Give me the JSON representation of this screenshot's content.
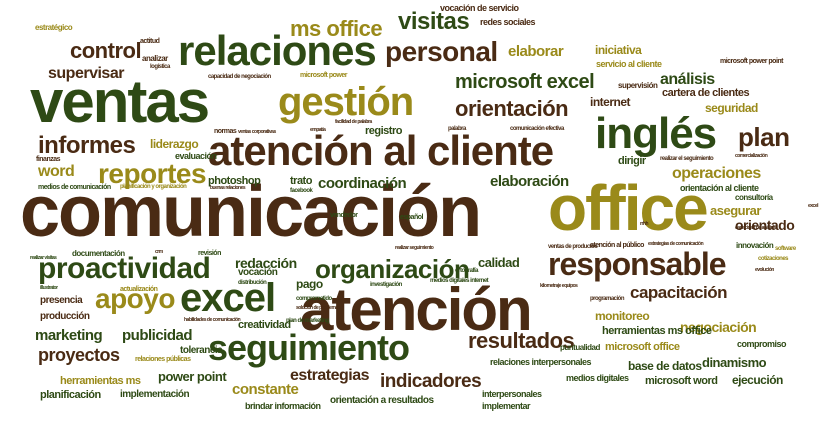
{
  "word_cloud": {
    "words": [
      {
        "text": "comunicación",
        "color": "#4a2b14"
      },
      {
        "text": "atención",
        "color": "#4a2b14"
      },
      {
        "text": "ventas",
        "color": "#2e4a15"
      },
      {
        "text": "office",
        "color": "#9a8a1a"
      },
      {
        "text": "inglés",
        "color": "#2e4a15"
      },
      {
        "text": "atención al cliente",
        "color": "#4a2b14"
      },
      {
        "text": "relaciones",
        "color": "#2e4a15"
      },
      {
        "text": "gestión",
        "color": "#9a8a1a"
      },
      {
        "text": "excel",
        "color": "#2e4a15"
      },
      {
        "text": "seguimiento",
        "color": "#2e4a15"
      },
      {
        "text": "responsable",
        "color": "#4a2b14"
      },
      {
        "text": "proactividad",
        "color": "#2e4a15"
      },
      {
        "text": "personal",
        "color": "#4a2b14"
      },
      {
        "text": "organización",
        "color": "#2e4a15"
      },
      {
        "text": "reportes",
        "color": "#9a8a1a"
      },
      {
        "text": "apoyo",
        "color": "#9a8a1a"
      },
      {
        "text": "ms office",
        "color": "#9a8a1a"
      },
      {
        "text": "informes",
        "color": "#4a2b14"
      },
      {
        "text": "control",
        "color": "#4a2b14"
      },
      {
        "text": "plan",
        "color": "#4a2b14"
      },
      {
        "text": "visitas",
        "color": "#2e4a15"
      },
      {
        "text": "resultados",
        "color": "#4a2b14"
      },
      {
        "text": "orientación",
        "color": "#4a2b14"
      },
      {
        "text": "microsoft excel",
        "color": "#2e4a15"
      },
      {
        "text": "supervisar",
        "color": "#4a2b14"
      },
      {
        "text": "indicadores",
        "color": "#4a2b14"
      },
      {
        "text": "estrategias",
        "color": "#4a2b14"
      },
      {
        "text": "proyectos",
        "color": "#4a2b14"
      },
      {
        "text": "capacitación",
        "color": "#4a2b14"
      },
      {
        "text": "operaciones",
        "color": "#9a8a1a"
      },
      {
        "text": "elaborar",
        "color": "#9a8a1a"
      },
      {
        "text": "análisis",
        "color": "#2e4a15"
      },
      {
        "text": "elaboración",
        "color": "#2e4a15"
      },
      {
        "text": "coordinación",
        "color": "#2e4a15"
      },
      {
        "text": "marketing",
        "color": "#2e4a15"
      },
      {
        "text": "publicidad",
        "color": "#2e4a15"
      },
      {
        "text": "word",
        "color": "#9a8a1a"
      },
      {
        "text": "redacción",
        "color": "#2e4a15"
      },
      {
        "text": "orientado",
        "color": "#4a2b14"
      },
      {
        "text": "asegurar",
        "color": "#9a8a1a"
      },
      {
        "text": "negociación",
        "color": "#9a8a1a"
      },
      {
        "text": "constante",
        "color": "#9a8a1a"
      },
      {
        "text": "power point",
        "color": "#2e4a15"
      },
      {
        "text": "dinamismo",
        "color": "#2e4a15"
      },
      {
        "text": "calidad",
        "color": "#2e4a15"
      },
      {
        "text": "liderazgo",
        "color": "#9a8a1a"
      },
      {
        "text": "iniciativa",
        "color": "#9a8a1a"
      },
      {
        "text": "cartera de clientes",
        "color": "#4a2b14"
      },
      {
        "text": "seguridad",
        "color": "#9a8a1a"
      },
      {
        "text": "internet",
        "color": "#4a2b14"
      },
      {
        "text": "dirigir",
        "color": "#2e4a15"
      },
      {
        "text": "monitoreo",
        "color": "#9a8a1a"
      },
      {
        "text": "herramientas ms office",
        "color": "#2e4a15"
      },
      {
        "text": "microsoft office",
        "color": "#9a8a1a"
      },
      {
        "text": "base de datos",
        "color": "#2e4a15"
      },
      {
        "text": "microsoft word",
        "color": "#2e4a15"
      },
      {
        "text": "ejecución",
        "color": "#2e4a15"
      },
      {
        "text": "compromiso",
        "color": "#2e4a15"
      },
      {
        "text": "pago",
        "color": "#2e4a15"
      },
      {
        "text": "trato",
        "color": "#2e4a15"
      },
      {
        "text": "photoshop",
        "color": "#2e4a15"
      },
      {
        "text": "creatividad",
        "color": "#2e4a15"
      },
      {
        "text": "tolerancia",
        "color": "#2e4a15"
      },
      {
        "text": "producción",
        "color": "#4a2b14"
      },
      {
        "text": "presencia",
        "color": "#4a2b14"
      },
      {
        "text": "planificación",
        "color": "#2e4a15"
      },
      {
        "text": "implementación",
        "color": "#2e4a15"
      },
      {
        "text": "herramientas ms",
        "color": "#9a8a1a"
      },
      {
        "text": "brindar información",
        "color": "#2e4a15"
      },
      {
        "text": "orientación a resultados",
        "color": "#2e4a15"
      },
      {
        "text": "relaciones interpersonales",
        "color": "#2e4a15"
      },
      {
        "text": "interpersonales",
        "color": "#2e4a15"
      },
      {
        "text": "implementar",
        "color": "#2e4a15"
      },
      {
        "text": "medios digitales",
        "color": "#2e4a15"
      },
      {
        "text": "puntualidad",
        "color": "#2e4a15"
      },
      {
        "text": "registro",
        "color": "#2e4a15"
      },
      {
        "text": "vocación",
        "color": "#2e4a15"
      },
      {
        "text": "evaluación",
        "color": "#2e4a15"
      },
      {
        "text": "redes sociales",
        "color": "#4a2b14"
      },
      {
        "text": "vocación de servicio",
        "color": "#4a2b14"
      },
      {
        "text": "servicio al cliente",
        "color": "#9a8a1a"
      },
      {
        "text": "supervisión",
        "color": "#4a2b14"
      },
      {
        "text": "microsoft power point",
        "color": "#4a2b14"
      },
      {
        "text": "orientación al cliente",
        "color": "#2e4a15"
      },
      {
        "text": "innovación",
        "color": "#2e4a15"
      },
      {
        "text": "consultoría",
        "color": "#2e4a15"
      },
      {
        "text": "documentación",
        "color": "#2e4a15"
      },
      {
        "text": "estratégico",
        "color": "#9a8a1a"
      },
      {
        "text": "actitud",
        "color": "#4a2b14"
      },
      {
        "text": "analizar",
        "color": "#4a2b14"
      },
      {
        "text": "logística",
        "color": "#4a2b14"
      },
      {
        "text": "capacidad de negociación",
        "color": "#4a2b14"
      },
      {
        "text": "microsoft power",
        "color": "#9a8a1a"
      },
      {
        "text": "normas",
        "color": "#4a2b14"
      },
      {
        "text": "palabra",
        "color": "#4a2b14"
      },
      {
        "text": "comunicación efectiva",
        "color": "#4a2b14"
      },
      {
        "text": "finanzas",
        "color": "#4a2b14"
      },
      {
        "text": "medios de comunicación",
        "color": "#2e4a15"
      },
      {
        "text": "planificación y organización",
        "color": "#9a8a1a"
      },
      {
        "text": "revisión",
        "color": "#2e4a15"
      },
      {
        "text": "actualización",
        "color": "#9a8a1a"
      },
      {
        "text": "distribución",
        "color": "#2e4a15"
      },
      {
        "text": "comprometido",
        "color": "#2e4a15"
      },
      {
        "text": "plan de marketing",
        "color": "#2e4a15"
      },
      {
        "text": "investigación",
        "color": "#2e4a15"
      },
      {
        "text": "medios digitales internet",
        "color": "#2e4a15"
      },
      {
        "text": "ortografía",
        "color": "#2e4a15"
      },
      {
        "text": "atención al público",
        "color": "#4a2b14"
      },
      {
        "text": "programación",
        "color": "#4a2b14"
      },
      {
        "text": "ventas de productos",
        "color": "#4a2b14"
      },
      {
        "text": "cotizaciones",
        "color": "#9a8a1a"
      },
      {
        "text": "software",
        "color": "#9a8a1a"
      },
      {
        "text": "vendedor",
        "color": "#2e4a15"
      },
      {
        "text": "español",
        "color": "#2e4a15"
      },
      {
        "text": "relaciones públicas",
        "color": "#9a8a1a"
      },
      {
        "text": "realizar el seguimiento",
        "color": "#4a2b14"
      },
      {
        "text": "estrategias de comunicación",
        "color": "#4a2b14"
      },
      {
        "text": "facebook",
        "color": "#2e4a15"
      },
      {
        "text": "ventas corporativas",
        "color": "#4a2b14"
      },
      {
        "text": "empatía",
        "color": "#4a2b14"
      },
      {
        "text": "facilidad de palabra",
        "color": "#4a2b14"
      },
      {
        "text": "buenas relaciones",
        "color": "#4a2b14"
      },
      {
        "text": "comercialización",
        "color": "#4a2b14"
      },
      {
        "text": "illustrator",
        "color": "#2e4a15"
      },
      {
        "text": "realizar visitas",
        "color": "#2e4a15"
      },
      {
        "text": "habilidades de comunicación",
        "color": "#4a2b14"
      },
      {
        "text": "solución de problemas",
        "color": "#4a2b14"
      },
      {
        "text": "kilometraje equipos",
        "color": "#4a2b14"
      },
      {
        "text": "evolución",
        "color": "#4a2b14"
      },
      {
        "text": "realizar seguimiento",
        "color": "#4a2b14"
      },
      {
        "text": "capacidad de análisis",
        "color": "#4a2b14"
      },
      {
        "text": "crm",
        "color": "#4a2b14"
      },
      {
        "text": "rrhh",
        "color": "#4a2b14"
      },
      {
        "text": "excel",
        "color": "#4a2b14"
      }
    ]
  }
}
